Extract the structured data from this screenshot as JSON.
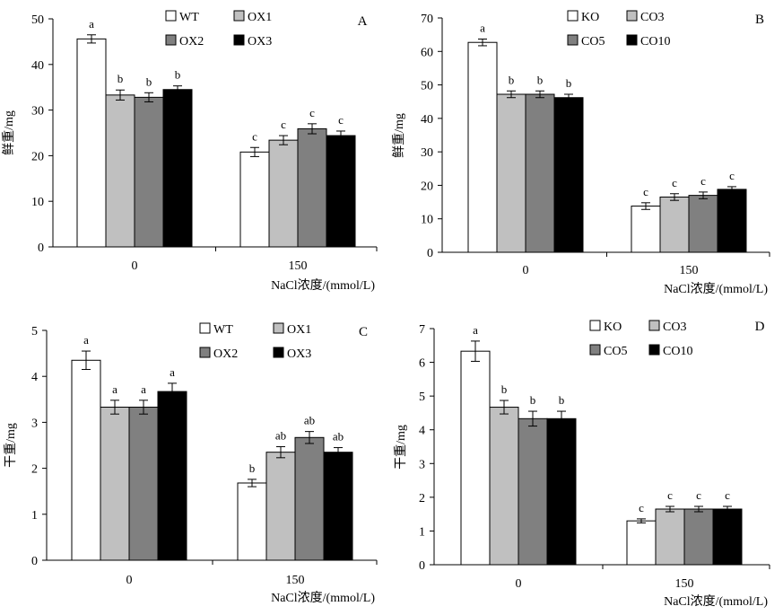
{
  "colors": {
    "c1": "#ffffff",
    "c2": "#c0c0c0",
    "c3": "#808080",
    "c4": "#000000",
    "stroke": "#000000"
  },
  "chart_data": [
    {
      "type": "bar",
      "panel_label": "A",
      "categories": [
        "0",
        "150"
      ],
      "xlabel": "NaCl浓度/(mmol/L)",
      "ylabel": "鲜重/mg",
      "ylim": [
        0,
        50
      ],
      "yticks": [
        0,
        10,
        20,
        30,
        40,
        50
      ],
      "legend_position": "top-center",
      "series": [
        {
          "name": "WT",
          "values": [
            45.6,
            20.8
          ],
          "errors": [
            0.9,
            1.0
          ],
          "labels": [
            "a",
            "c"
          ]
        },
        {
          "name": "OX1",
          "values": [
            33.3,
            23.4
          ],
          "errors": [
            1.1,
            1.0
          ],
          "labels": [
            "b",
            "c"
          ]
        },
        {
          "name": "OX2",
          "values": [
            32.8,
            25.9
          ],
          "errors": [
            1.0,
            1.1
          ],
          "labels": [
            "b",
            "c"
          ]
        },
        {
          "name": "OX3",
          "values": [
            34.5,
            24.4
          ],
          "errors": [
            0.8,
            1.0
          ],
          "labels": [
            "b",
            "c"
          ]
        }
      ]
    },
    {
      "type": "bar",
      "panel_label": "B",
      "categories": [
        "0",
        "150"
      ],
      "xlabel": "NaCl浓度/(mmol/L)",
      "ylabel": "鲜重/mg",
      "ylim": [
        0,
        70
      ],
      "yticks": [
        0,
        10,
        20,
        30,
        40,
        50,
        60,
        70
      ],
      "legend_position": "top-center",
      "series": [
        {
          "name": "KO",
          "values": [
            62.7,
            13.8
          ],
          "errors": [
            1.0,
            1.0
          ],
          "labels": [
            "a",
            "c"
          ]
        },
        {
          "name": "CO3",
          "values": [
            47.2,
            16.5
          ],
          "errors": [
            1.0,
            1.0
          ],
          "labels": [
            "b",
            "c"
          ]
        },
        {
          "name": "CO5",
          "values": [
            47.2,
            17.0
          ],
          "errors": [
            1.0,
            1.0
          ],
          "labels": [
            "b",
            "c"
          ]
        },
        {
          "name": "CO10",
          "values": [
            46.2,
            18.8
          ],
          "errors": [
            1.0,
            0.8
          ],
          "labels": [
            "b",
            "c"
          ]
        }
      ]
    },
    {
      "type": "bar",
      "panel_label": "C",
      "categories": [
        "0",
        "150"
      ],
      "xlabel": "NaCl浓度/(mmol/L)",
      "ylabel": "干重/mg",
      "ylim": [
        0,
        5
      ],
      "yticks": [
        0,
        1,
        2,
        3,
        4,
        5
      ],
      "legend_position": "top-center",
      "series": [
        {
          "name": "WT",
          "values": [
            4.35,
            1.68
          ],
          "errors": [
            0.2,
            0.08
          ],
          "labels": [
            "a",
            "b"
          ]
        },
        {
          "name": "OX1",
          "values": [
            3.33,
            2.35
          ],
          "errors": [
            0.15,
            0.12
          ],
          "labels": [
            "a",
            "ab"
          ]
        },
        {
          "name": "OX2",
          "values": [
            3.33,
            2.67
          ],
          "errors": [
            0.15,
            0.13
          ],
          "labels": [
            "a",
            "ab"
          ]
        },
        {
          "name": "OX3",
          "values": [
            3.67,
            2.35
          ],
          "errors": [
            0.18,
            0.1
          ],
          "labels": [
            "a",
            "ab"
          ]
        }
      ]
    },
    {
      "type": "bar",
      "panel_label": "D",
      "categories": [
        "0",
        "150"
      ],
      "xlabel": "NaCl浓度/(mmol/L)",
      "ylabel": "干重/mg",
      "ylim": [
        0,
        7
      ],
      "yticks": [
        0,
        1,
        2,
        3,
        4,
        5,
        6,
        7
      ],
      "legend_position": "top-center",
      "series": [
        {
          "name": "KO",
          "values": [
            6.33,
            1.3
          ],
          "errors": [
            0.3,
            0.06
          ],
          "labels": [
            "a",
            "c"
          ]
        },
        {
          "name": "CO3",
          "values": [
            4.67,
            1.65
          ],
          "errors": [
            0.2,
            0.08
          ],
          "labels": [
            "b",
            "c"
          ]
        },
        {
          "name": "CO5",
          "values": [
            4.33,
            1.65
          ],
          "errors": [
            0.22,
            0.08
          ],
          "labels": [
            "b",
            "c"
          ]
        },
        {
          "name": "CO10",
          "values": [
            4.33,
            1.65
          ],
          "errors": [
            0.22,
            0.08
          ],
          "labels": [
            "b",
            "c"
          ]
        }
      ]
    }
  ]
}
